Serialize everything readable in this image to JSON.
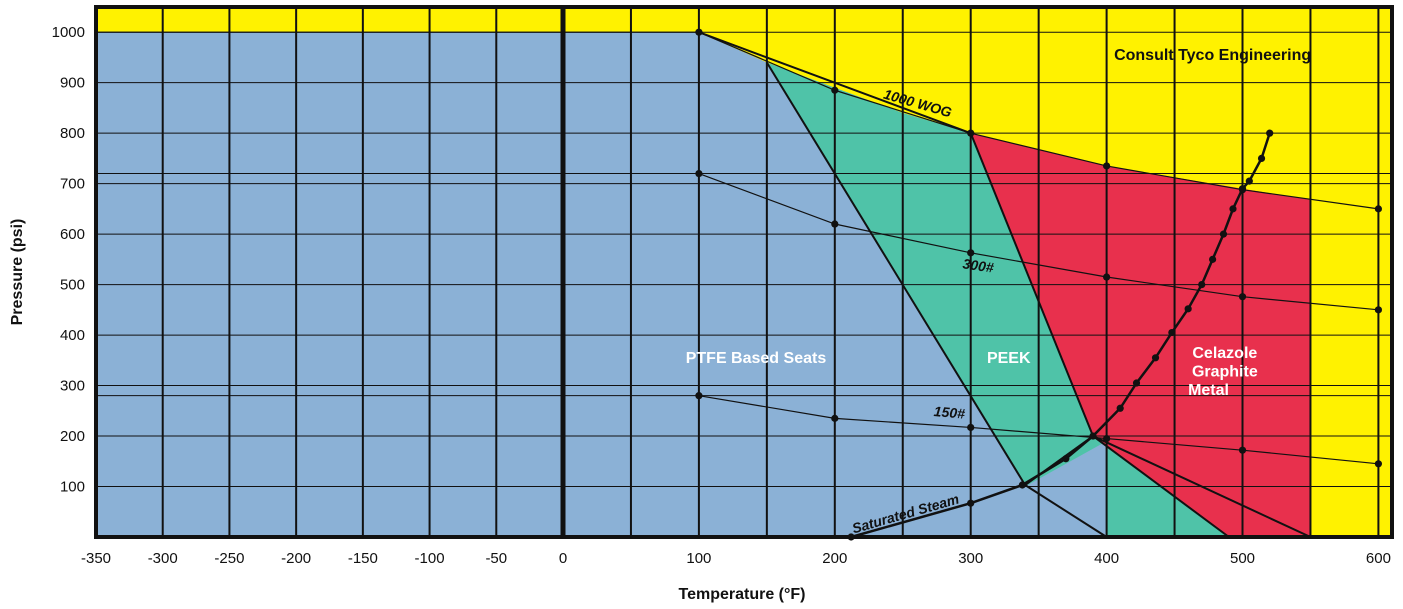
{
  "chart_data": {
    "type": "area",
    "xlabel": "Temperature (°F)",
    "ylabel": "Pressure (psi)",
    "xlim": [
      -350,
      610
    ],
    "ylim": [
      0,
      1050
    ],
    "x_ticks": [
      "-350",
      "-300",
      "-250",
      "-200",
      "-150",
      "-100",
      "-50",
      "0",
      "100",
      "200",
      "300",
      "400",
      "500",
      "600"
    ],
    "y_ticks": [
      "100",
      "200",
      "300",
      "400",
      "500",
      "600",
      "700",
      "800",
      "900",
      "1000"
    ],
    "grid": true,
    "colors": {
      "consult": "#fff200",
      "ptfe": "#8bb1d6",
      "peek": "#4fc3a8",
      "celazole": "#e8304d",
      "line": "#111111"
    },
    "regions": [
      {
        "name": "Consult Tyco Engineering",
        "polygon": [
          [
            -350,
            1050
          ],
          [
            610,
            1050
          ],
          [
            610,
            0
          ],
          [
            -350,
            0
          ]
        ]
      },
      {
        "name": "PTFE Based Seats",
        "polygon": [
          [
            -350,
            1000
          ],
          [
            100,
            1000
          ],
          [
            150,
            940
          ],
          [
            200,
            890
          ],
          [
            250,
            840
          ],
          [
            300,
            800
          ],
          [
            400,
            200
          ],
          [
            490,
            0
          ],
          [
            -350,
            0
          ]
        ]
      },
      {
        "name": "PEEK",
        "polygon": [
          [
            150,
            940
          ],
          [
            200,
            890
          ],
          [
            250,
            840
          ],
          [
            300,
            800
          ],
          [
            390,
            200
          ],
          [
            490,
            0
          ],
          [
            400,
            0
          ],
          [
            400,
            190
          ],
          [
            340,
            100
          ]
        ]
      },
      {
        "name": "Celazole Graphite Metal",
        "polygon": [
          [
            300,
            800
          ],
          [
            400,
            735
          ],
          [
            500,
            690
          ],
          [
            550,
            668
          ],
          [
            550,
            0
          ],
          [
            490,
            0
          ],
          [
            390,
            200
          ]
        ]
      }
    ],
    "region_labels": [
      {
        "text": "Consult Tyco Engineering",
        "x": 478,
        "y": 945
      },
      {
        "text": "PTFE Based Seats",
        "x": 142,
        "y": 345
      },
      {
        "text": "PEEK",
        "x": 328,
        "y": 345
      },
      {
        "text": "Celazole",
        "x": 487,
        "y": 355
      },
      {
        "text": "Graphite",
        "x": 487,
        "y": 318
      },
      {
        "text": "Metal",
        "x": 475,
        "y": 281
      }
    ],
    "series": [
      {
        "name": "1000 WOG",
        "points": [
          [
            -350,
            1000
          ],
          [
            100,
            1000
          ],
          [
            200,
            885
          ],
          [
            300,
            800
          ],
          [
            400,
            735
          ],
          [
            500,
            688
          ],
          [
            600,
            650
          ]
        ]
      },
      {
        "name": "300#",
        "points": [
          [
            100,
            720
          ],
          [
            200,
            620
          ],
          [
            300,
            563
          ],
          [
            400,
            515
          ],
          [
            500,
            476
          ],
          [
            600,
            450
          ]
        ]
      },
      {
        "name": "150#",
        "points": [
          [
            100,
            280
          ],
          [
            200,
            235
          ],
          [
            300,
            217
          ],
          [
            400,
            195
          ],
          [
            500,
            172
          ],
          [
            600,
            145
          ]
        ]
      },
      {
        "name": "Saturated Steam",
        "points": [
          [
            212,
            0
          ],
          [
            300,
            67
          ],
          [
            338,
            103
          ],
          [
            370,
            155
          ],
          [
            390,
            200
          ],
          [
            410,
            255
          ],
          [
            422,
            305
          ],
          [
            436,
            355
          ],
          [
            448,
            405
          ],
          [
            460,
            452
          ],
          [
            470,
            500
          ],
          [
            478,
            550
          ],
          [
            486,
            600
          ],
          [
            493,
            650
          ],
          [
            500,
            690
          ],
          [
            505,
            705
          ],
          [
            514,
            750
          ],
          [
            520,
            800
          ]
        ]
      }
    ],
    "boundaries": [
      {
        "name": "PTFE limit",
        "points": [
          [
            100,
            1000
          ],
          [
            300,
            800
          ]
        ]
      },
      {
        "name": "PTFE/PEEK",
        "points": [
          [
            150,
            940
          ],
          [
            340,
            103
          ]
        ]
      },
      {
        "name": "PEEK/Celazole",
        "points": [
          [
            300,
            800
          ],
          [
            390,
            200
          ]
        ]
      },
      {
        "name": "PTFE lower",
        "points": [
          [
            340,
            103
          ],
          [
            390,
            200
          ]
        ]
      },
      {
        "name": "lower right 1",
        "points": [
          [
            340,
            103
          ],
          [
            400,
            0
          ]
        ]
      },
      {
        "name": "lower right 2",
        "points": [
          [
            390,
            200
          ],
          [
            490,
            0
          ]
        ]
      },
      {
        "name": "Celazole limit",
        "points": [
          [
            390,
            200
          ],
          [
            550,
            0
          ]
        ]
      }
    ],
    "curve_labels": [
      {
        "text": "1000 WOG",
        "x": 260,
        "y": 850
      },
      {
        "text": "300#",
        "x": 305,
        "y": 528
      },
      {
        "text": "150#",
        "x": 284,
        "y": 237
      },
      {
        "text": "Saturated Steam",
        "x": 253,
        "y": 37
      }
    ]
  }
}
